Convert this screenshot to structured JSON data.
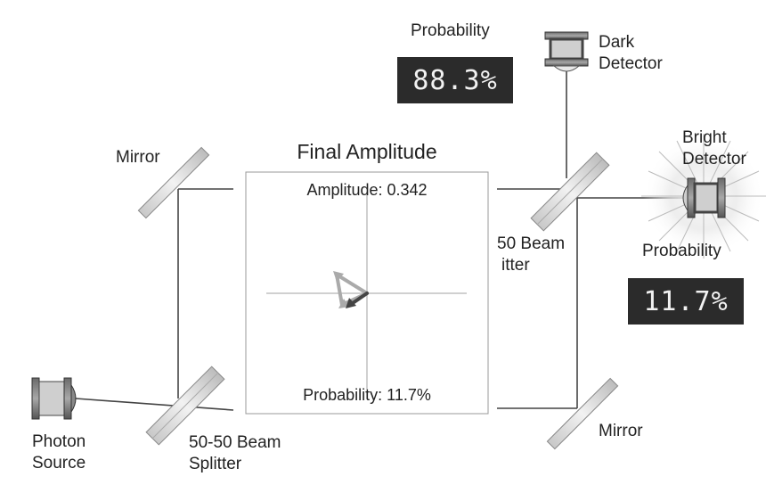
{
  "labels": {
    "mirror_top": "Mirror",
    "mirror_bottom": "Mirror",
    "photon_source": [
      "Photon",
      "Source"
    ],
    "splitter_bottom": [
      "50-50 Beam",
      "Splitter"
    ],
    "splitter_right": [
      "50 Beam",
      "itter"
    ],
    "dark_detector": [
      "Dark",
      "Detector"
    ],
    "bright_detector": [
      "Bright",
      "Detector"
    ]
  },
  "dark_readout": {
    "label": "Probability",
    "value": "88.3%"
  },
  "bright_readout": {
    "label": "Probability",
    "value": "11.7%"
  },
  "amplitude_panel": {
    "title": "Final Amplitude",
    "amplitude_text": "Amplitude: 0.342",
    "probability_text": "Probability: 11.7%"
  },
  "colors": {
    "beam": "#444444",
    "readout_bg": "#2b2b2b",
    "readout_text": "#f2f2f2",
    "axis": "#d0d0d0",
    "arrow_light": "#aaaaaa",
    "arrow_dark": "#444444"
  }
}
